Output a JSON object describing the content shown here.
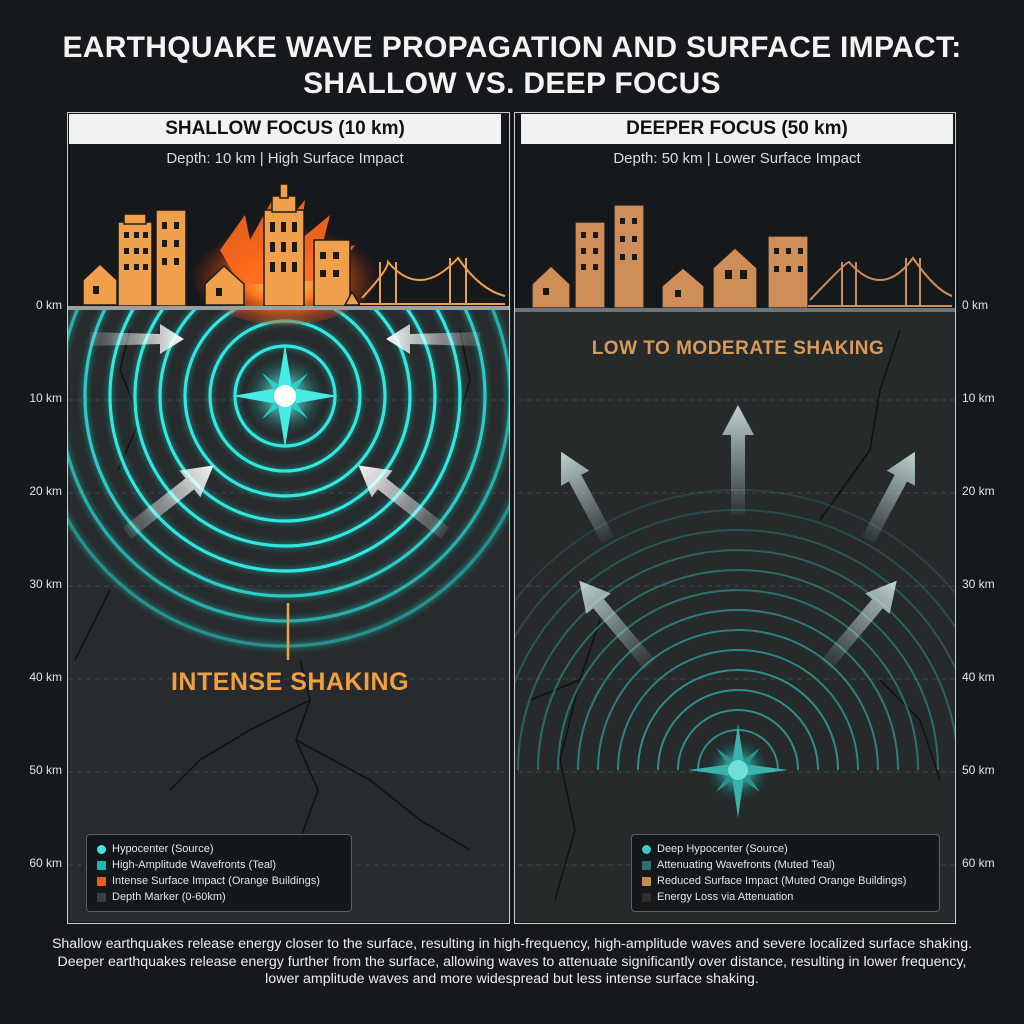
{
  "title_line1": "EARTHQUAKE WAVE PROPAGATION AND SURFACE IMPACT:",
  "title_line2": "SHALLOW VS. DEEP FOCUS",
  "left_panel": {
    "header": "SHALLOW FOCUS (10 km)",
    "subtitle": "Depth: 10 km | High Surface Impact",
    "shaking_label": "INTENSE SHAKING",
    "legend": [
      {
        "text": "Hypocenter (Source)",
        "color": "#3fe6de"
      },
      {
        "text": "High-Amplitude Wavefronts (Teal)",
        "color": "#1fb7b3"
      },
      {
        "text": "Intense Surface Impact (Orange Buildings)",
        "color": "#f05a1e"
      },
      {
        "text": "Depth Marker (0-60km)",
        "color": "#3a3f41"
      }
    ]
  },
  "right_panel": {
    "header": "DEEPER FOCUS (50 km)",
    "subtitle": "Depth: 50 km | Lower Surface Impact",
    "shaking_label": "LOW TO MODERATE SHAKING",
    "legend": [
      {
        "text": "Deep Hypocenter (Source)",
        "color": "#3fc9c0"
      },
      {
        "text": "Attenuating Wavefronts (Muted Teal)",
        "color": "#2f6f6c"
      },
      {
        "text": "Reduced Surface Impact (Muted Orange Buildings)",
        "color": "#c88a55"
      },
      {
        "text": "Energy Loss via Attenuation",
        "color": "#2c2f2b"
      }
    ]
  },
  "depth_markers": [
    "0 km",
    "10 km",
    "20 km",
    "30 km",
    "40 km",
    "50 km",
    "60 km"
  ],
  "caption": "Shallow earthquakes release energy closer to the surface, resulting in high-frequency, high-amplitude waves and severe localized surface shaking. Deeper earthquakes release energy further from the surface, allowing waves to attenuate significantly over distance, resulting in lower frequency, lower amplitude waves and more widespread but less intense surface shaking."
}
